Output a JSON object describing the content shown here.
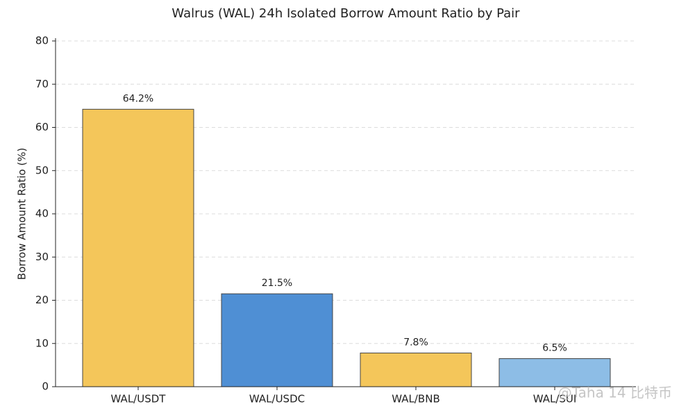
{
  "chart_data": {
    "type": "bar",
    "title": "Walrus (WAL) 24h Isolated Borrow Amount Ratio by Pair",
    "y_label": "Borrow Amount Ratio (%)",
    "categories": [
      "WAL/USDT",
      "WAL/USDC",
      "WAL/BNB",
      "WAL/SUI"
    ],
    "values": [
      64.2,
      21.5,
      7.8,
      6.5
    ],
    "value_labels": [
      "64.2%",
      "21.5%",
      "7.8%",
      "6.5%"
    ],
    "colors": [
      "#f4c65a",
      "#4f8fd4",
      "#f4c65a",
      "#8dbde6"
    ],
    "ylim": [
      0,
      80
    ],
    "yticks": [
      0,
      10,
      20,
      30,
      40,
      50,
      60,
      70,
      80
    ],
    "grid": true
  },
  "watermark": "@Taha 14 比特币"
}
